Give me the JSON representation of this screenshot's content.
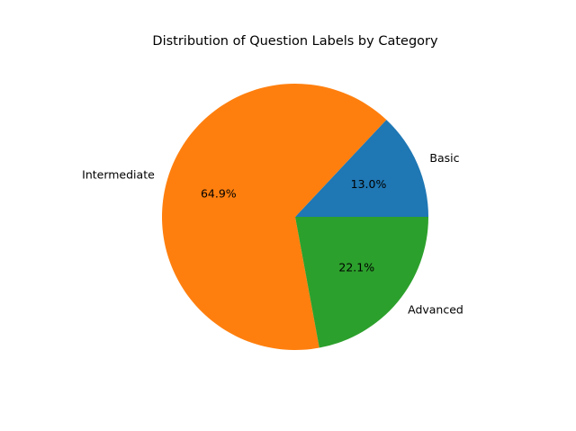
{
  "chart_data": {
    "type": "pie",
    "title": "Distribution of Question Labels by Category",
    "categories": [
      "Basic",
      "Intermediate",
      "Advanced"
    ],
    "values": [
      13.0,
      64.9,
      22.1
    ],
    "percent_labels": [
      "13.0%",
      "64.9%",
      "22.1%"
    ],
    "colors": [
      "#1f77b4",
      "#ff7f0e",
      "#2ca02c"
    ],
    "start_angle_deg": 0,
    "direction": "counterclockwise",
    "legend": "none"
  }
}
